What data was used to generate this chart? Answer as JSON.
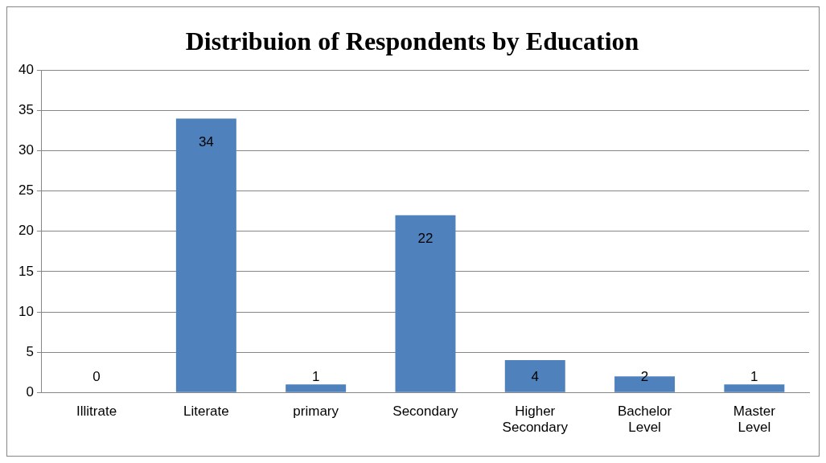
{
  "chart_data": {
    "type": "bar",
    "title": "Distribuion of Respondents by Education",
    "categories": [
      "Illitrate",
      "Literate",
      "primary",
      "Secondary",
      "Higher Secondary",
      "Bachelor Level",
      "Master Level"
    ],
    "values": [
      0,
      34,
      1,
      22,
      4,
      2,
      1
    ],
    "color": "#4f81bd",
    "ylim": [
      0,
      40
    ],
    "yticks": [
      0,
      5,
      10,
      15,
      20,
      25,
      30,
      35,
      40
    ],
    "grid": "y",
    "data_labels": true,
    "legend": false
  }
}
